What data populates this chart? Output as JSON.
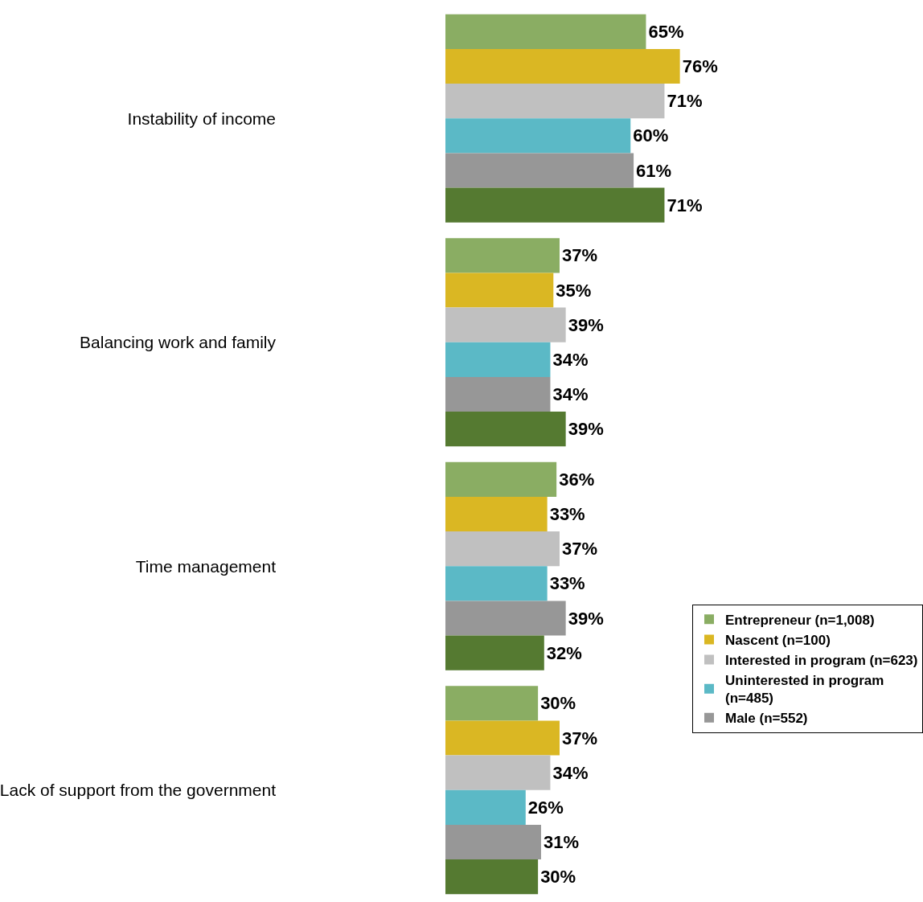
{
  "chart_data": {
    "type": "bar",
    "orientation": "horizontal",
    "legend": "bottom right",
    "categories": [
      "Instability of income",
      "Balancing work and family",
      "Time management",
      "Lack of support from the government"
    ],
    "series": [
      {
        "name": "Entrepreneur (n=1,008)",
        "color": "#8aad63",
        "values": [
          65,
          37,
          36,
          30
        ],
        "value_labels": [
          "65%",
          "37%",
          "36%",
          "30%"
        ]
      },
      {
        "name": "Nascent (n=100)",
        "color": "#dab723",
        "values": [
          76,
          35,
          33,
          37
        ],
        "value_labels": [
          "76%",
          "35%",
          "33%",
          "37%"
        ]
      },
      {
        "name": "Interested in program (n=623)",
        "color": "#c0c0c0",
        "values": [
          71,
          39,
          37,
          34
        ],
        "value_labels": [
          "71%",
          "39%",
          "37%",
          "34%"
        ]
      },
      {
        "name": "Uninterested in program (n=485)",
        "color": "#5bb9c6",
        "values": [
          60,
          34,
          33,
          26
        ],
        "value_labels": [
          "60%",
          "34%",
          "33%",
          "26%"
        ]
      },
      {
        "name": "Male (n=552)",
        "color": "#979797",
        "values": [
          61,
          34,
          39,
          31
        ],
        "value_labels": [
          "61%",
          "34%",
          "39%",
          "31%"
        ]
      },
      {
        "color": "#557a31",
        "values": [
          71,
          39,
          32,
          30
        ],
        "value_labels": [
          "71%",
          "39%",
          "32%",
          "30%"
        ]
      }
    ]
  }
}
